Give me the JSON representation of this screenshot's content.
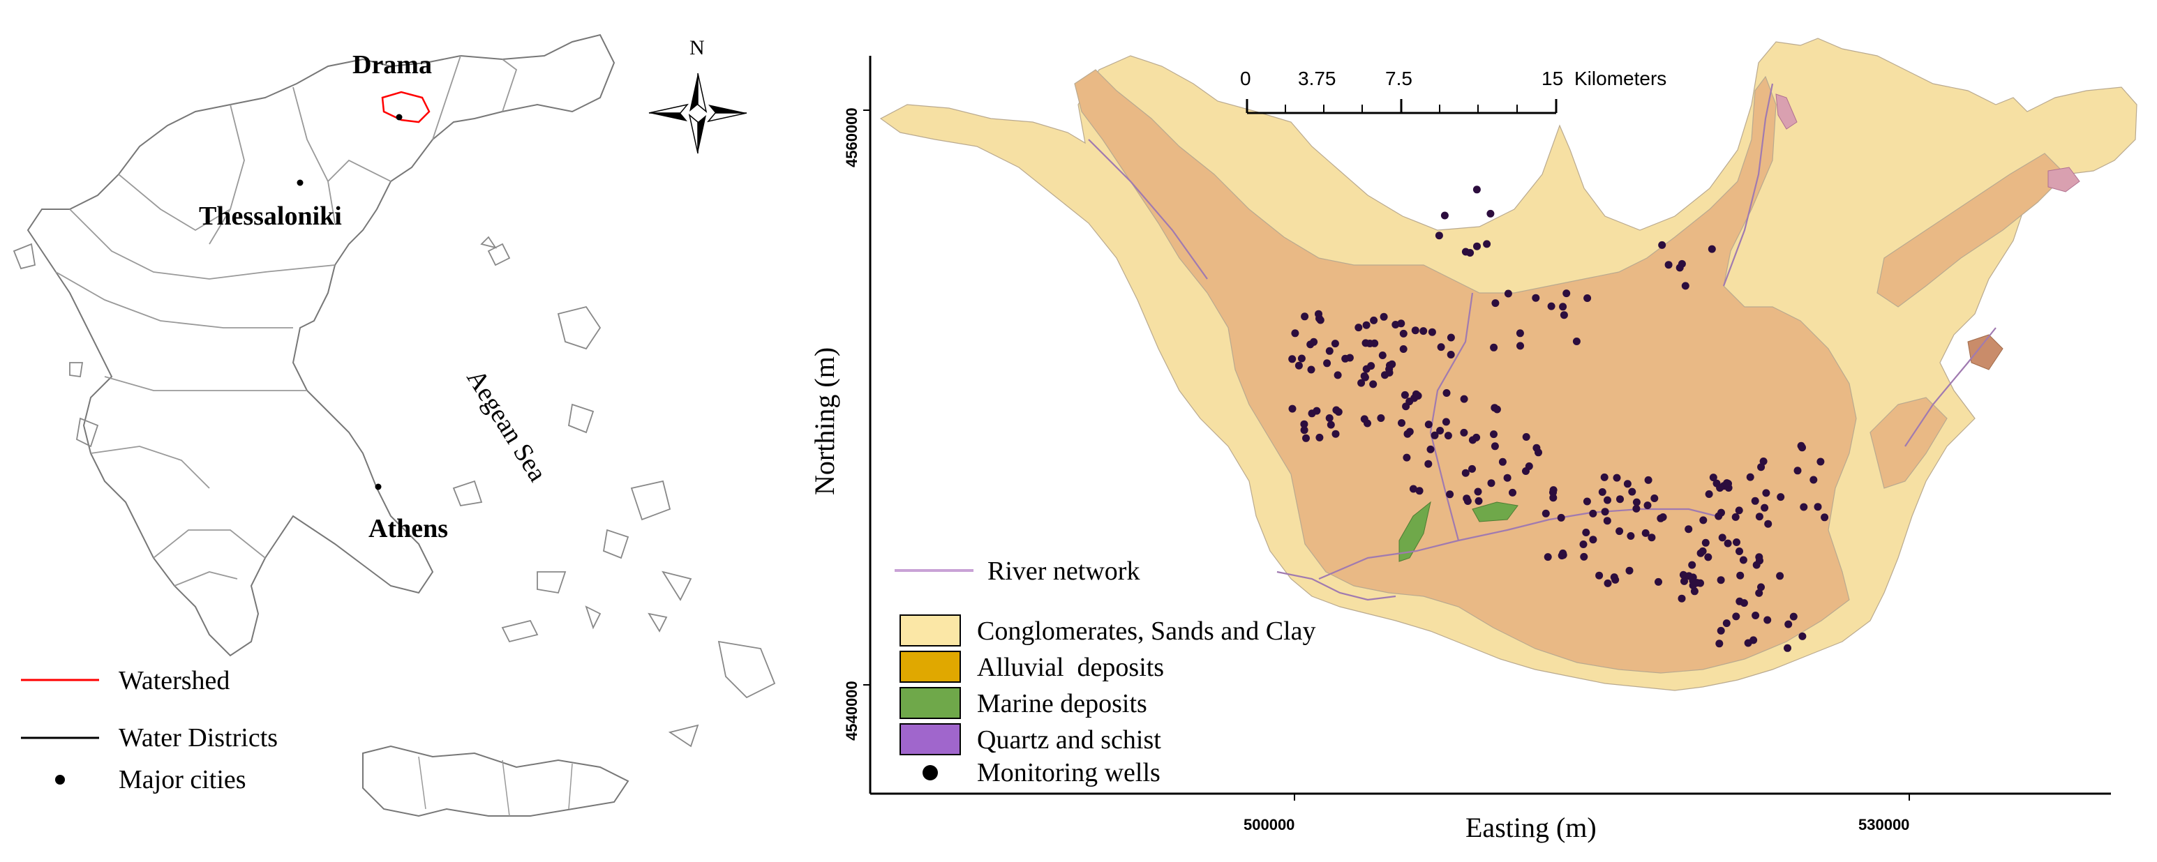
{
  "greece_map": {
    "cities": [
      {
        "name": "Drama"
      },
      {
        "name": "Thessaloniki"
      },
      {
        "name": "Athens"
      }
    ],
    "sea_label": "Aegean Sea",
    "north_label": "N",
    "legend": {
      "watershed": "Watershed",
      "water_districts": "Water Districts",
      "major_cities": "Major cities"
    },
    "colors": {
      "watershed": "#ff0000",
      "districts": "#666666",
      "cities": "#000000"
    }
  },
  "geology_map": {
    "scale_bar": {
      "ticks": [
        "0",
        "3.75",
        "7.5",
        "15"
      ],
      "unit": "Kilometers"
    },
    "axes": {
      "x_label": "Easting (m)",
      "y_label": "Northing (m)",
      "x_ticks": [
        "500000",
        "530000"
      ],
      "y_ticks": [
        "4560000",
        "4540000"
      ]
    },
    "legend": {
      "river": "River network",
      "units": [
        {
          "label": "Conglomerates, Sands and Clay",
          "color": "#fbe7a6"
        },
        {
          "label": "Alluvial  deposits",
          "color": "#e0a800"
        },
        {
          "label": "Marine deposits",
          "color": "#6fa84a"
        },
        {
          "label": "Quartz and schist",
          "color": "#a066cc"
        }
      ],
      "wells": "Monitoring wells"
    },
    "colors": {
      "conglomerates_fill": "#f6e0a3",
      "alluvial_fill": "#e9b985",
      "marine_fill": "#6fa84a",
      "quartz_fill": "#d9a0b0",
      "river": "#c9a2d6",
      "wells": "#2c0d3e"
    }
  }
}
